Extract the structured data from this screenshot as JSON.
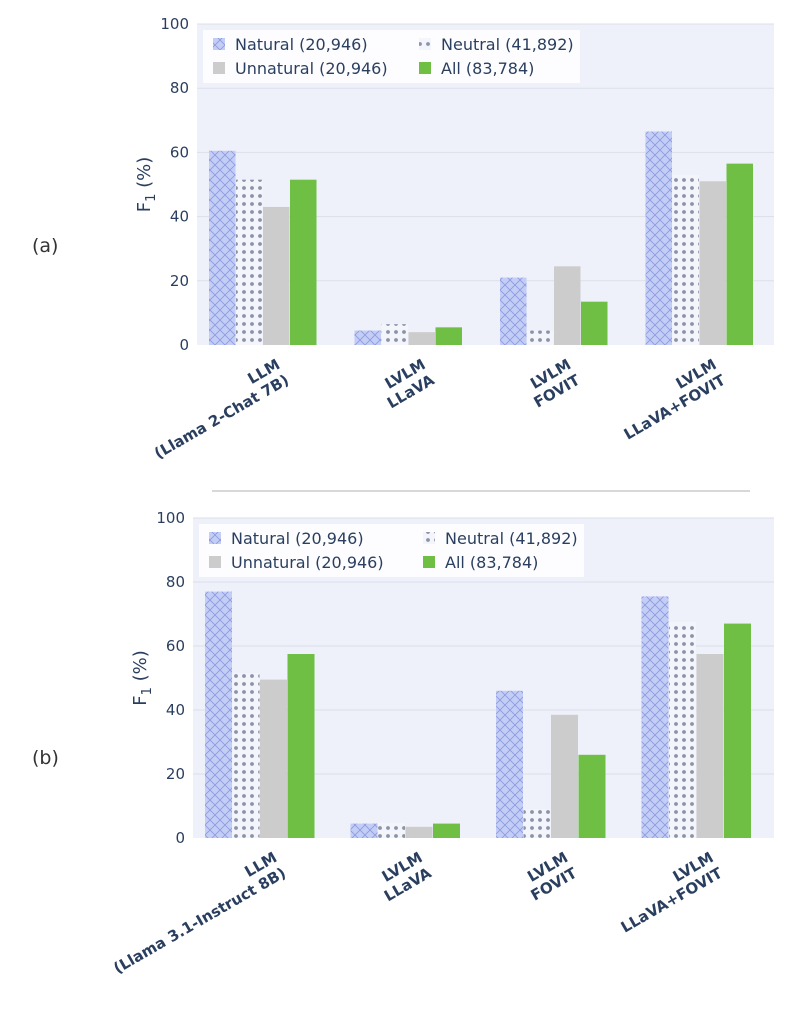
{
  "colors": {
    "natural": "#c4cdf5",
    "natural_hatch": "#8a9ae0",
    "neutral_dots": "#8b93a8",
    "unnatural": "#cccccc",
    "all": "#6fbf45",
    "plot_bg": "#eef0fa",
    "grid": "#dcdfe8",
    "separator": "#d8d8d8"
  },
  "chart_data": [
    {
      "type": "bar",
      "panel_label": "(a)",
      "ylabel_main": "F",
      "ylabel_sub": "1",
      "ylabel_rest": " (%)",
      "ylim": [
        0,
        100
      ],
      "yticks": [
        "0",
        "20",
        "40",
        "60",
        "80",
        "100"
      ],
      "categories": [
        {
          "line1": "LLM",
          "line2": "(Llama 2-Chat 7B)"
        },
        {
          "line1": "LVLM",
          "line2": "LLaVA"
        },
        {
          "line1": "LVLM",
          "line2": "FOVIT"
        },
        {
          "line1": "LVLM",
          "line2": "LLaVA+FOVIT"
        }
      ],
      "series": [
        {
          "name": "Natural (20,946)",
          "pattern": "crosshatch",
          "values": [
            60.5,
            4.5,
            21,
            66.5
          ]
        },
        {
          "name": "Neutral (41,892)",
          "pattern": "dots",
          "values": [
            51.5,
            6.5,
            4.5,
            53
          ]
        },
        {
          "name": "Unnatural (20,946)",
          "pattern": "solid-gray",
          "values": [
            43,
            4,
            24.5,
            51
          ]
        },
        {
          "name": "All (83,784)",
          "pattern": "solid-green",
          "values": [
            51.5,
            5.5,
            13.5,
            56.5
          ]
        }
      ],
      "legend": [
        {
          "label": "Natural (20,946)",
          "key": "natural"
        },
        {
          "label": "Neutral (41,892)",
          "key": "neutral"
        },
        {
          "label": "Unnatural (20,946)",
          "key": "unnatural"
        },
        {
          "label": "All (83,784)",
          "key": "all"
        }
      ]
    },
    {
      "type": "bar",
      "panel_label": "(b)",
      "ylabel_main": "F",
      "ylabel_sub": "1",
      "ylabel_rest": " (%)",
      "ylim": [
        0,
        100
      ],
      "yticks": [
        "0",
        "20",
        "40",
        "60",
        "80",
        "100"
      ],
      "categories": [
        {
          "line1": "LLM",
          "line2": "(Llama 3.1-Instruct 8B)"
        },
        {
          "line1": "LVLM",
          "line2": "LLaVA"
        },
        {
          "line1": "LVLM",
          "line2": "FOVIT"
        },
        {
          "line1": "LVLM",
          "line2": "LLaVA+FOVIT"
        }
      ],
      "series": [
        {
          "name": "Natural (20,946)",
          "pattern": "crosshatch",
          "values": [
            77,
            4.5,
            46,
            75.5
          ]
        },
        {
          "name": "Neutral (41,892)",
          "pattern": "dots",
          "values": [
            51.5,
            4.8,
            9,
            67.5
          ]
        },
        {
          "name": "Unnatural (20,946)",
          "pattern": "solid-gray",
          "values": [
            49.5,
            3.5,
            38.5,
            57.5
          ]
        },
        {
          "name": "All (83,784)",
          "pattern": "solid-green",
          "values": [
            57.5,
            4.5,
            26,
            67
          ]
        }
      ],
      "legend": [
        {
          "label": "Natural (20,946)",
          "key": "natural"
        },
        {
          "label": "Neutral (41,892)",
          "key": "neutral"
        },
        {
          "label": "Unnatural (20,946)",
          "key": "unnatural"
        },
        {
          "label": "All (83,784)",
          "key": "all"
        }
      ]
    }
  ]
}
